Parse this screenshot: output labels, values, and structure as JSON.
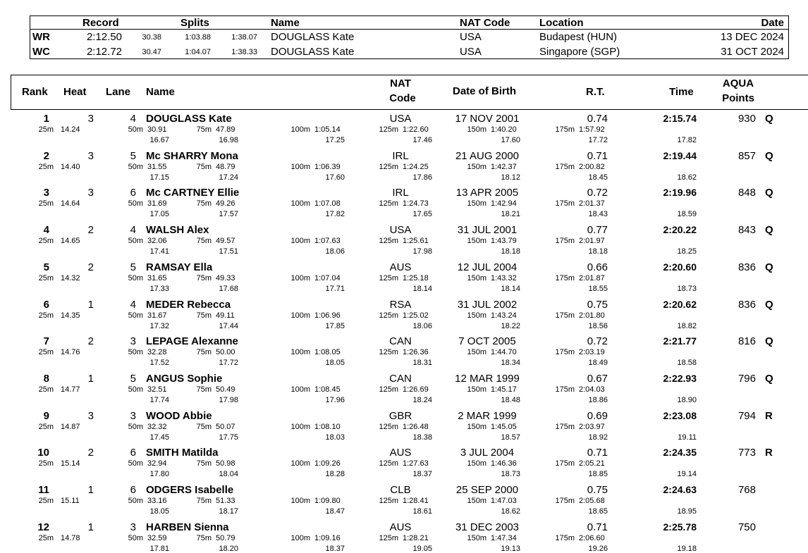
{
  "records": {
    "headers": {
      "record": "Record",
      "splits": "Splits",
      "name": "Name",
      "nat": "NAT Code",
      "location": "Location",
      "date": "Date"
    },
    "rows": [
      {
        "code": "WR",
        "time": "2:12.50",
        "s1": "30.38",
        "s2": "1:03.88",
        "s3": "1:38.07",
        "name": "DOUGLASS Kate",
        "nat": "USA",
        "location": "Budapest (HUN)",
        "date": "13 DEC 2024"
      },
      {
        "code": "WC",
        "time": "2:12.72",
        "s1": "30.47",
        "s2": "1:04.07",
        "s3": "1:38.33",
        "name": "DOUGLASS Kate",
        "nat": "USA",
        "location": "Singapore (SGP)",
        "date": "31 OCT 2024"
      }
    ]
  },
  "results": {
    "headers": {
      "rank": "Rank",
      "heat": "Heat",
      "lane": "Lane",
      "name": "Name",
      "nat1": "NAT",
      "nat2": "Code",
      "dob": "Date of Birth",
      "rt": "R.T.",
      "time": "Time",
      "aqua1": "AQUA",
      "aqua2": "Points"
    },
    "split_labels": [
      "25m",
      "50m",
      "75m",
      "100m",
      "125m",
      "150m",
      "175m"
    ],
    "rows": [
      {
        "rank": "1",
        "heat": "3",
        "lane": "4",
        "name": "DOUGLASS Kate",
        "nat": "USA",
        "dob": "17 NOV 2001",
        "rt": "0.74",
        "time": "2:15.74",
        "points": "930",
        "q": "Q",
        "splits": [
          "14.24",
          "30.91",
          "47.89",
          "1:05.14",
          "1:22.60",
          "1:40.20",
          "1:57.92"
        ],
        "laps": [
          "16.67",
          "16.98",
          "17.25",
          "17.46",
          "17.60",
          "17.72",
          "17.82"
        ]
      },
      {
        "rank": "2",
        "heat": "3",
        "lane": "5",
        "name": "Mc SHARRY Mona",
        "nat": "IRL",
        "dob": "21 AUG 2000",
        "rt": "0.71",
        "time": "2:19.44",
        "points": "857",
        "q": "Q",
        "splits": [
          "14.40",
          "31.55",
          "48.79",
          "1:06.39",
          "1:24.25",
          "1:42.37",
          "2:00.82"
        ],
        "laps": [
          "17.15",
          "17.24",
          "17.60",
          "17.86",
          "18.12",
          "18.45",
          "18.62"
        ]
      },
      {
        "rank": "3",
        "heat": "3",
        "lane": "6",
        "name": "Mc CARTNEY Ellie",
        "nat": "IRL",
        "dob": "13 APR 2005",
        "rt": "0.72",
        "time": "2:19.96",
        "points": "848",
        "q": "Q",
        "splits": [
          "14.64",
          "31.69",
          "49.26",
          "1:07.08",
          "1:24.73",
          "1:42.94",
          "2:01.37"
        ],
        "laps": [
          "17.05",
          "17.57",
          "17.82",
          "17.65",
          "18.21",
          "18.43",
          "18.59"
        ]
      },
      {
        "rank": "4",
        "heat": "2",
        "lane": "4",
        "name": "WALSH Alex",
        "nat": "USA",
        "dob": "31 JUL 2001",
        "rt": "0.77",
        "time": "2:20.22",
        "points": "843",
        "q": "Q",
        "splits": [
          "14.65",
          "32.06",
          "49.57",
          "1:07.63",
          "1:25.61",
          "1:43.79",
          "2:01.97"
        ],
        "laps": [
          "17.41",
          "17.51",
          "18.06",
          "17.98",
          "18.18",
          "18.18",
          "18.25"
        ]
      },
      {
        "rank": "5",
        "heat": "2",
        "lane": "5",
        "name": "RAMSAY Ella",
        "nat": "AUS",
        "dob": "12 JUL 2004",
        "rt": "0.66",
        "time": "2:20.60",
        "points": "836",
        "q": "Q",
        "splits": [
          "14.32",
          "31.65",
          "49.33",
          "1:07.04",
          "1:25.18",
          "1:43.32",
          "2:01.87"
        ],
        "laps": [
          "17.33",
          "17.68",
          "17.71",
          "18.14",
          "18.14",
          "18.55",
          "18.73"
        ]
      },
      {
        "rank": "6",
        "heat": "1",
        "lane": "4",
        "name": "MEDER Rebecca",
        "nat": "RSA",
        "dob": "31 JUL 2002",
        "rt": "0.75",
        "time": "2:20.62",
        "points": "836",
        "q": "Q",
        "splits": [
          "14.35",
          "31.67",
          "49.11",
          "1:06.96",
          "1:25.02",
          "1:43.24",
          "2:01.80"
        ],
        "laps": [
          "17.32",
          "17.44",
          "17.85",
          "18.06",
          "18.22",
          "18.56",
          "18.82"
        ]
      },
      {
        "rank": "7",
        "heat": "2",
        "lane": "3",
        "name": "LEPAGE Alexanne",
        "nat": "CAN",
        "dob": "7 OCT 2005",
        "rt": "0.72",
        "time": "2:21.77",
        "points": "816",
        "q": "Q",
        "splits": [
          "14.76",
          "32.28",
          "50.00",
          "1:08.05",
          "1:26.36",
          "1:44.70",
          "2:03.19"
        ],
        "laps": [
          "17.52",
          "17.72",
          "18.05",
          "18.31",
          "18.34",
          "18.49",
          "18.58"
        ]
      },
      {
        "rank": "8",
        "heat": "1",
        "lane": "5",
        "name": "ANGUS Sophie",
        "nat": "CAN",
        "dob": "12 MAR 1999",
        "rt": "0.67",
        "time": "2:22.93",
        "points": "796",
        "q": "Q",
        "splits": [
          "14.77",
          "32.51",
          "50.49",
          "1:08.45",
          "1:26.69",
          "1:45.17",
          "2:04.03"
        ],
        "laps": [
          "17.74",
          "17.98",
          "17.96",
          "18.24",
          "18.48",
          "18.86",
          "18.90"
        ]
      },
      {
        "rank": "9",
        "heat": "3",
        "lane": "3",
        "name": "WOOD Abbie",
        "nat": "GBR",
        "dob": "2 MAR 1999",
        "rt": "0.69",
        "time": "2:23.08",
        "points": "794",
        "q": "R",
        "splits": [
          "14.87",
          "32.32",
          "50.07",
          "1:08.10",
          "1:26.48",
          "1:45.05",
          "2:03.97"
        ],
        "laps": [
          "17.45",
          "17.75",
          "18.03",
          "18.38",
          "18.57",
          "18.92",
          "19.11"
        ]
      },
      {
        "rank": "10",
        "heat": "2",
        "lane": "6",
        "name": "SMITH Matilda",
        "nat": "AUS",
        "dob": "3 JUL 2004",
        "rt": "0.71",
        "time": "2:24.35",
        "points": "773",
        "q": "R",
        "splits": [
          "15.14",
          "32.94",
          "50.98",
          "1:09.26",
          "1:27.63",
          "1:46.36",
          "2:05.21"
        ],
        "laps": [
          "17.80",
          "18.04",
          "18.28",
          "18.37",
          "18.73",
          "18.85",
          "19.14"
        ]
      },
      {
        "rank": "11",
        "heat": "1",
        "lane": "6",
        "name": "ODGERS Isabelle",
        "nat": "CLB",
        "dob": "25 SEP 2000",
        "rt": "0.75",
        "time": "2:24.63",
        "points": "768",
        "q": "",
        "splits": [
          "15.11",
          "33.16",
          "51.33",
          "1:09.80",
          "1:28.41",
          "1:47.03",
          "2:05.68"
        ],
        "laps": [
          "18.05",
          "18.17",
          "18.47",
          "18.61",
          "18.62",
          "18.65",
          "18.95"
        ]
      },
      {
        "rank": "12",
        "heat": "1",
        "lane": "3",
        "name": "HARBEN Sienna",
        "nat": "AUS",
        "dob": "31 DEC 2003",
        "rt": "0.71",
        "time": "2:25.78",
        "points": "750",
        "q": "",
        "splits": [
          "14.78",
          "32.59",
          "50.79",
          "1:09.16",
          "1:28.21",
          "1:47.34",
          "2:06.60"
        ],
        "laps": [
          "17.81",
          "18.20",
          "18.37",
          "19.05",
          "19.13",
          "19.26",
          "19.18"
        ]
      }
    ]
  }
}
